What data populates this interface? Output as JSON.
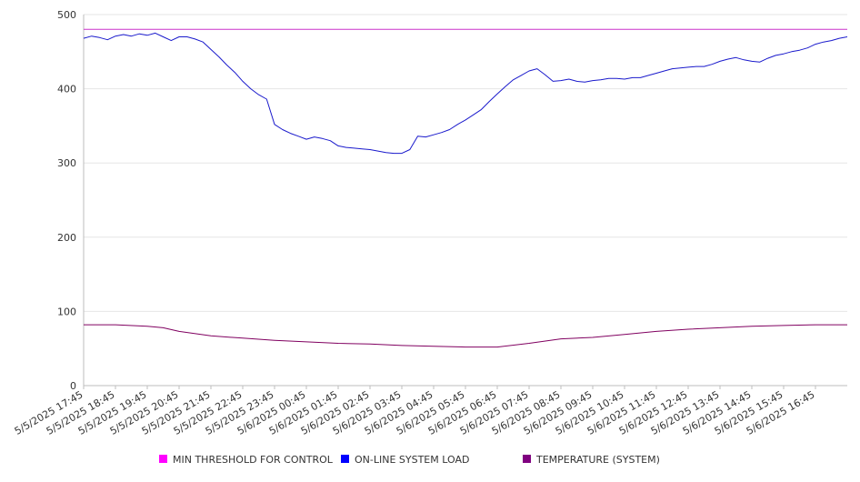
{
  "chart_data": {
    "type": "line",
    "title": "",
    "xlabel": "",
    "ylabel": "",
    "ylim": [
      0,
      500
    ],
    "yticks": [
      0,
      100,
      200,
      300,
      400,
      500
    ],
    "grid": "horizontal",
    "legend_position": "bottom",
    "x_tick_labels": [
      "5/5/2025 17:45",
      "5/5/2025 18:45",
      "5/5/2025 19:45",
      "5/5/2025 20:45",
      "5/5/2025 21:45",
      "5/5/2025 22:45",
      "5/5/2025 23:45",
      "5/6/2025 00:45",
      "5/6/2025 01:45",
      "5/6/2025 02:45",
      "5/6/2025 03:45",
      "5/6/2025 04:45",
      "5/6/2025 05:45",
      "5/6/2025 06:45",
      "5/6/2025 07:45",
      "5/6/2025 08:45",
      "5/6/2025 09:45",
      "5/6/2025 10:45",
      "5/6/2025 11:45",
      "5/6/2025 12:45",
      "5/6/2025 13:45",
      "5/6/2025 14:45",
      "5/6/2025 15:45",
      "5/6/2025 16:45"
    ],
    "x_end": "5/6/2025 17:45",
    "series": [
      {
        "name": "MIN THRESHOLD FOR CONTROL",
        "color": "#cc33cc",
        "legend_color": "#ff00ff",
        "points": [
          [
            "5/5/2025 17:45",
            480
          ],
          [
            "5/6/2025 17:45",
            480
          ]
        ]
      },
      {
        "name": "ON-LINE SYSTEM LOAD",
        "color": "#1a1acc",
        "legend_color": "#0000ff",
        "points": [
          [
            "5/5/2025 17:45",
            468
          ],
          [
            "5/5/2025 18:00",
            471
          ],
          [
            "5/5/2025 18:15",
            469
          ],
          [
            "5/5/2025 18:30",
            466
          ],
          [
            "5/5/2025 18:45",
            471
          ],
          [
            "5/5/2025 19:00",
            473
          ],
          [
            "5/5/2025 19:15",
            471
          ],
          [
            "5/5/2025 19:30",
            474
          ],
          [
            "5/5/2025 19:45",
            472
          ],
          [
            "5/5/2025 20:00",
            475
          ],
          [
            "5/5/2025 20:15",
            470
          ],
          [
            "5/5/2025 20:30",
            465
          ],
          [
            "5/5/2025 20:45",
            470
          ],
          [
            "5/5/2025 21:00",
            470
          ],
          [
            "5/5/2025 21:15",
            467
          ],
          [
            "5/5/2025 21:30",
            463
          ],
          [
            "5/5/2025 21:45",
            453
          ],
          [
            "5/5/2025 22:00",
            443
          ],
          [
            "5/5/2025 22:15",
            432
          ],
          [
            "5/5/2025 22:30",
            422
          ],
          [
            "5/5/2025 22:45",
            410
          ],
          [
            "5/5/2025 23:00",
            400
          ],
          [
            "5/5/2025 23:15",
            392
          ],
          [
            "5/5/2025 23:30",
            386
          ],
          [
            "5/5/2025 23:45",
            352
          ],
          [
            "5/6/2025 00:00",
            345
          ],
          [
            "5/6/2025 00:15",
            340
          ],
          [
            "5/6/2025 00:30",
            336
          ],
          [
            "5/6/2025 00:45",
            332
          ],
          [
            "5/6/2025 01:00",
            335
          ],
          [
            "5/6/2025 01:15",
            333
          ],
          [
            "5/6/2025 01:30",
            330
          ],
          [
            "5/6/2025 01:45",
            323
          ],
          [
            "5/6/2025 02:00",
            321
          ],
          [
            "5/6/2025 02:15",
            320
          ],
          [
            "5/6/2025 02:30",
            319
          ],
          [
            "5/6/2025 02:45",
            318
          ],
          [
            "5/6/2025 03:00",
            316
          ],
          [
            "5/6/2025 03:15",
            314
          ],
          [
            "5/6/2025 03:30",
            313
          ],
          [
            "5/6/2025 03:45",
            313
          ],
          [
            "5/6/2025 04:00",
            318
          ],
          [
            "5/6/2025 04:15",
            336
          ],
          [
            "5/6/2025 04:30",
            335
          ],
          [
            "5/6/2025 04:45",
            338
          ],
          [
            "5/6/2025 05:00",
            341
          ],
          [
            "5/6/2025 05:15",
            345
          ],
          [
            "5/6/2025 05:30",
            352
          ],
          [
            "5/6/2025 05:45",
            358
          ],
          [
            "5/6/2025 06:00",
            365
          ],
          [
            "5/6/2025 06:15",
            372
          ],
          [
            "5/6/2025 06:30",
            383
          ],
          [
            "5/6/2025 06:45",
            393
          ],
          [
            "5/6/2025 07:00",
            403
          ],
          [
            "5/6/2025 07:15",
            412
          ],
          [
            "5/6/2025 07:30",
            418
          ],
          [
            "5/6/2025 07:45",
            424
          ],
          [
            "5/6/2025 08:00",
            427
          ],
          [
            "5/6/2025 08:15",
            419
          ],
          [
            "5/6/2025 08:30",
            410
          ],
          [
            "5/6/2025 08:45",
            411
          ],
          [
            "5/6/2025 09:00",
            413
          ],
          [
            "5/6/2025 09:15",
            410
          ],
          [
            "5/6/2025 09:30",
            409
          ],
          [
            "5/6/2025 09:45",
            411
          ],
          [
            "5/6/2025 10:00",
            412
          ],
          [
            "5/6/2025 10:15",
            414
          ],
          [
            "5/6/2025 10:30",
            414
          ],
          [
            "5/6/2025 10:45",
            413
          ],
          [
            "5/6/2025 11:00",
            415
          ],
          [
            "5/6/2025 11:15",
            415
          ],
          [
            "5/6/2025 11:30",
            418
          ],
          [
            "5/6/2025 11:45",
            421
          ],
          [
            "5/6/2025 12:00",
            424
          ],
          [
            "5/6/2025 12:15",
            427
          ],
          [
            "5/6/2025 12:30",
            428
          ],
          [
            "5/6/2025 12:45",
            429
          ],
          [
            "5/6/2025 13:00",
            430
          ],
          [
            "5/6/2025 13:15",
            430
          ],
          [
            "5/6/2025 13:30",
            433
          ],
          [
            "5/6/2025 13:45",
            437
          ],
          [
            "5/6/2025 14:00",
            440
          ],
          [
            "5/6/2025 14:15",
            442
          ],
          [
            "5/6/2025 14:30",
            439
          ],
          [
            "5/6/2025 14:45",
            437
          ],
          [
            "5/6/2025 15:00",
            436
          ],
          [
            "5/6/2025 15:15",
            441
          ],
          [
            "5/6/2025 15:30",
            445
          ],
          [
            "5/6/2025 15:45",
            447
          ],
          [
            "5/6/2025 16:00",
            450
          ],
          [
            "5/6/2025 16:15",
            452
          ],
          [
            "5/6/2025 16:30",
            455
          ],
          [
            "5/6/2025 16:45",
            460
          ],
          [
            "5/6/2025 17:00",
            463
          ],
          [
            "5/6/2025 17:15",
            465
          ],
          [
            "5/6/2025 17:30",
            468
          ],
          [
            "5/6/2025 17:45",
            470
          ]
        ]
      },
      {
        "name": "TEMPERATURE (SYSTEM)",
        "color": "#800060",
        "legend_color": "#800080",
        "points": [
          [
            "5/5/2025 17:45",
            82
          ],
          [
            "5/5/2025 18:45",
            82
          ],
          [
            "5/5/2025 19:45",
            80
          ],
          [
            "5/5/2025 20:15",
            78
          ],
          [
            "5/5/2025 20:45",
            73
          ],
          [
            "5/5/2025 21:45",
            67
          ],
          [
            "5/5/2025 22:45",
            64
          ],
          [
            "5/5/2025 23:45",
            61
          ],
          [
            "5/6/2025 00:45",
            59
          ],
          [
            "5/6/2025 01:45",
            57
          ],
          [
            "5/6/2025 02:45",
            56
          ],
          [
            "5/6/2025 03:45",
            54
          ],
          [
            "5/6/2025 04:45",
            53
          ],
          [
            "5/6/2025 05:45",
            52
          ],
          [
            "5/6/2025 06:45",
            52
          ],
          [
            "5/6/2025 07:45",
            57
          ],
          [
            "5/6/2025 08:45",
            63
          ],
          [
            "5/6/2025 09:45",
            65
          ],
          [
            "5/6/2025 10:45",
            69
          ],
          [
            "5/6/2025 11:45",
            73
          ],
          [
            "5/6/2025 12:45",
            76
          ],
          [
            "5/6/2025 13:45",
            78
          ],
          [
            "5/6/2025 14:45",
            80
          ],
          [
            "5/6/2025 15:45",
            81
          ],
          [
            "5/6/2025 16:45",
            82
          ],
          [
            "5/6/2025 17:45",
            82
          ]
        ]
      }
    ]
  }
}
